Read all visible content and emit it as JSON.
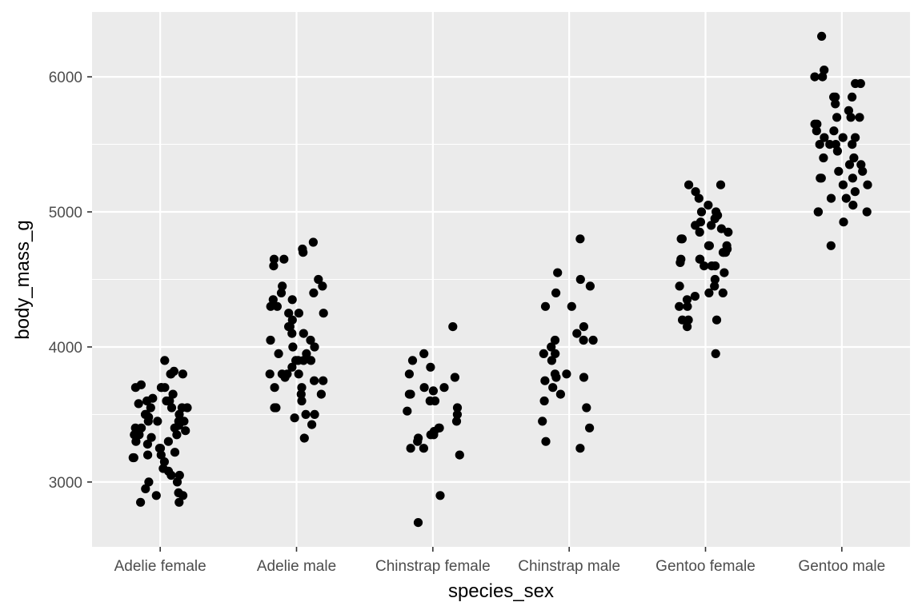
{
  "chart_data": {
    "type": "scatter",
    "title": "",
    "xlabel": "species_sex",
    "ylabel": "body_mass_g",
    "categories": [
      "Adelie female",
      "Adelie male",
      "Chinstrap female",
      "Chinstrap male",
      "Gentoo female",
      "Gentoo male"
    ],
    "ylim": [
      2520,
      6480
    ],
    "yticks": [
      3000,
      4000,
      5000,
      6000
    ],
    "grid": true,
    "legend": "none",
    "point_color": "#000000",
    "panel_color": "#ebebeb",
    "points": [
      {
        "x": "Adelie female",
        "ys": [
          3900,
          3700,
          3800,
          3800,
          3820,
          3800,
          3700,
          3720,
          3700,
          3500,
          3480,
          3550,
          3550,
          3600,
          3620,
          3600,
          3580,
          3550,
          3500,
          3450,
          3450,
          3450,
          3420,
          3400,
          3400,
          3380,
          3350,
          3350,
          3330,
          3300,
          3300,
          3280,
          3250,
          3220,
          3200,
          3200,
          3180,
          3150,
          3100,
          3080,
          3050,
          3050,
          3000,
          2950,
          2920,
          2900,
          2900,
          2850,
          2850,
          3000,
          3180,
          3250,
          3350,
          3400,
          3450,
          3500,
          3550,
          3600,
          3650,
          3700
        ]
      },
      {
        "x": "Adelie male",
        "ys": [
          4775,
          4725,
          4700,
          4650,
          4650,
          4600,
          4500,
          4450,
          4450,
          4400,
          4400,
          4350,
          4350,
          4300,
          4300,
          4250,
          4250,
          4250,
          4200,
          4150,
          4150,
          4100,
          4100,
          4050,
          4050,
          4000,
          4000,
          3950,
          3950,
          3900,
          3900,
          3900,
          3900,
          3850,
          3800,
          3800,
          3800,
          3800,
          3775,
          3750,
          3750,
          3700,
          3700,
          3650,
          3650,
          3600,
          3550,
          3550,
          3500,
          3500,
          3475,
          3425,
          3325
        ]
      },
      {
        "x": "Chinstrap female",
        "ys": [
          4150,
          3950,
          3900,
          3850,
          3800,
          3775,
          3700,
          3700,
          3675,
          3650,
          3650,
          3600,
          3600,
          3550,
          3525,
          3500,
          3450,
          3400,
          3400,
          3375,
          3350,
          3350,
          3325,
          3300,
          3250,
          3250,
          3200,
          2900,
          2700
        ]
      },
      {
        "x": "Chinstrap male",
        "ys": [
          4800,
          4550,
          4500,
          4450,
          4400,
          4300,
          4300,
          4150,
          4100,
          4050,
          4050,
          4050,
          4000,
          3950,
          3950,
          3900,
          3800,
          3800,
          3775,
          3775,
          3750,
          3700,
          3650,
          3600,
          3550,
          3450,
          3400,
          3300,
          3250
        ]
      },
      {
        "x": "Gentoo female",
        "ys": [
          5200,
          5200,
          5150,
          5100,
          5050,
          5000,
          5000,
          4975,
          4950,
          4925,
          4900,
          4900,
          4875,
          4850,
          4850,
          4800,
          4800,
          4750,
          4750,
          4750,
          4725,
          4700,
          4700,
          4700,
          4650,
          4650,
          4650,
          4625,
          4600,
          4600,
          4600,
          4550,
          4500,
          4450,
          4450,
          4400,
          4400,
          4375,
          4350,
          4300,
          4300,
          4200,
          4200,
          4200,
          4150,
          3950
        ]
      },
      {
        "x": "Gentoo male",
        "ys": [
          6300,
          6050,
          6000,
          6000,
          5950,
          5950,
          5850,
          5850,
          5850,
          5800,
          5750,
          5700,
          5700,
          5700,
          5650,
          5650,
          5600,
          5600,
          5550,
          5550,
          5550,
          5500,
          5500,
          5500,
          5500,
          5450,
          5400,
          5400,
          5350,
          5350,
          5300,
          5300,
          5250,
          5250,
          5250,
          5200,
          5200,
          5150,
          5100,
          5100,
          5050,
          5000,
          5000,
          5000,
          4925,
          4750
        ]
      }
    ]
  }
}
